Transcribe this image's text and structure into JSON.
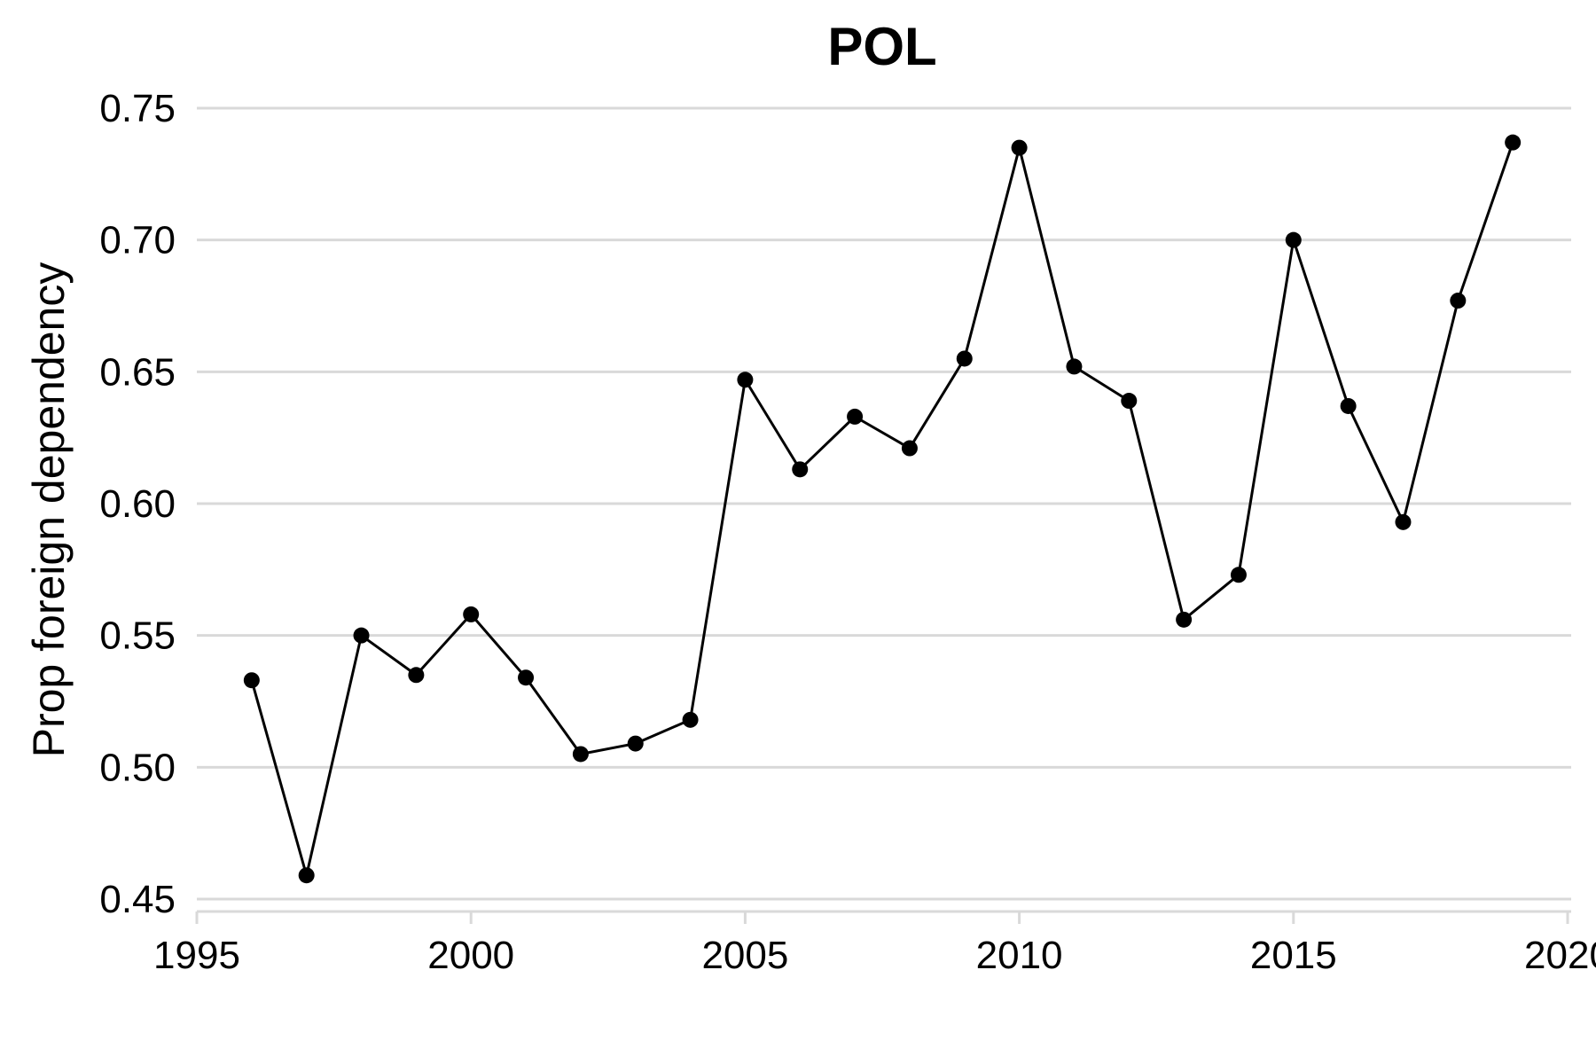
{
  "chart_data": {
    "type": "line",
    "title": "POL",
    "xlabel": "",
    "ylabel": "Prop foreign dependency",
    "xlim": [
      1995,
      2020
    ],
    "ylim": [
      0.45,
      0.75
    ],
    "x_ticks": [
      1995,
      2000,
      2005,
      2010,
      2015,
      2020
    ],
    "x_tick_labels": [
      "1995",
      "2000",
      "2005",
      "2010",
      "2015",
      "2020"
    ],
    "y_ticks": [
      0.45,
      0.5,
      0.55,
      0.6,
      0.65,
      0.7,
      0.75
    ],
    "y_tick_labels": [
      "0.45",
      "0.50",
      "0.55",
      "0.60",
      "0.65",
      "0.70",
      "0.75"
    ],
    "grid": true,
    "legend": "none",
    "colors": {
      "series": "#000000",
      "grid": "#d9d9d9"
    },
    "series": [
      {
        "x": [
          1996,
          1997,
          1998,
          1999,
          2000,
          2001,
          2002,
          2003,
          2004,
          2005,
          2006,
          2007,
          2008,
          2009,
          2010,
          2011,
          2012,
          2013,
          2014,
          2015,
          2016,
          2017,
          2018,
          2019
        ],
        "values": [
          0.533,
          0.459,
          0.55,
          0.535,
          0.558,
          0.534,
          0.505,
          0.509,
          0.518,
          0.647,
          0.613,
          0.633,
          0.621,
          0.655,
          0.735,
          0.652,
          0.639,
          0.556,
          0.573,
          0.7,
          0.637,
          0.593,
          0.677,
          0.737
        ]
      }
    ]
  }
}
